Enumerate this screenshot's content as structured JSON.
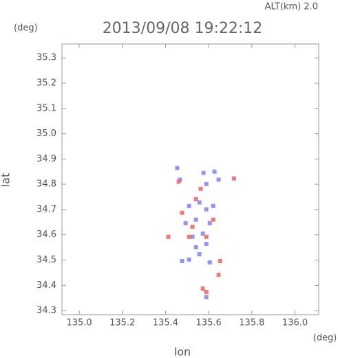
{
  "chart_data": {
    "type": "scatter",
    "title": "2013/09/08 19:22:12",
    "subtitle": "ALT(km) 2.0",
    "y_unit": "(deg)",
    "x_unit": "(deg)",
    "xlabel": "lon",
    "ylabel": "lat",
    "xlim": [
      134.92,
      136.11
    ],
    "ylim": [
      34.284,
      35.355
    ],
    "xticks": [
      {
        "value": 135,
        "label": "135.0"
      },
      135.2,
      135.4,
      135.6,
      135.8,
      {
        "value": 136,
        "label": "136.0"
      }
    ],
    "yticks": [
      34.3,
      34.4,
      34.5,
      34.6,
      34.7,
      34.8,
      34.9,
      {
        "value": 35,
        "label": "35.0"
      },
      35.1,
      35.2,
      35.3
    ],
    "series": [
      {
        "color": "#8080f0",
        "x": [
          135.454,
          135.467,
          135.576,
          135.627,
          135.646,
          135.589,
          135.557,
          135.509,
          135.589,
          135.541,
          135.493,
          135.605,
          135.573,
          135.525,
          135.589,
          135.557,
          135.509,
          135.605,
          135.589,
          135.477,
          135.621,
          135.541
        ],
        "y": [
          34.864,
          34.818,
          34.845,
          34.85,
          34.818,
          34.801,
          34.728,
          34.714,
          34.701,
          34.66,
          34.646,
          34.646,
          34.605,
          34.592,
          34.564,
          34.523,
          34.502,
          34.491,
          34.354,
          34.496,
          34.714,
          34.551
        ]
      },
      {
        "color": "#f06060",
        "x": [
          135.653,
          135.646,
          135.589,
          135.573,
          135.461,
          135.477,
          135.525,
          135.589,
          135.509,
          135.563,
          135.717,
          135.413,
          135.621,
          135.541
        ],
        "y": [
          34.496,
          34.442,
          34.374,
          34.387,
          34.81,
          34.687,
          34.632,
          34.592,
          34.592,
          34.782,
          34.823,
          34.592,
          34.66,
          34.741
        ]
      }
    ]
  }
}
